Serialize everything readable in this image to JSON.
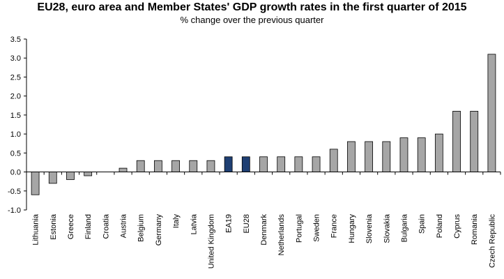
{
  "chart_data": {
    "type": "bar",
    "title": "EU28, euro area and Member States' GDP growth rates in the first quarter of 2015",
    "subtitle": "% change over the previous quarter",
    "xlabel": "",
    "ylabel": "",
    "ylim": [
      -1.0,
      3.5
    ],
    "yticks": [
      "-1.0",
      "-0.5",
      "0.0",
      "0.5",
      "1.0",
      "1.5",
      "2.0",
      "2.5",
      "3.0",
      "3.5"
    ],
    "grid": false,
    "legend": "none",
    "categories": [
      "Lithuania",
      "Estonia",
      "Greece",
      "Finland",
      "Croatia",
      "Austria",
      "Belgium",
      "Germany",
      "Italy",
      "Latvia",
      "United Kingdom",
      "EA19",
      "EU28",
      "Denmark",
      "Netherlands",
      "Portugal",
      "Sweden",
      "France",
      "Hungary",
      "Slovenia",
      "Slovakia",
      "Bulgaria",
      "Spain",
      "Poland",
      "Cyprus",
      "Romania",
      "Czech Republic"
    ],
    "values": [
      -0.6,
      -0.3,
      -0.2,
      -0.1,
      0.0,
      0.1,
      0.3,
      0.3,
      0.3,
      0.3,
      0.3,
      0.4,
      0.4,
      0.4,
      0.4,
      0.4,
      0.4,
      0.6,
      0.8,
      0.8,
      0.8,
      0.9,
      0.9,
      1.0,
      1.6,
      1.6,
      3.1
    ],
    "highlighted": [
      "EA19",
      "EU28"
    ],
    "colors": {
      "country_bar": "#a6a6a6",
      "aggregate_bar": "#1f3f73",
      "bar_edge": "#000000"
    }
  }
}
